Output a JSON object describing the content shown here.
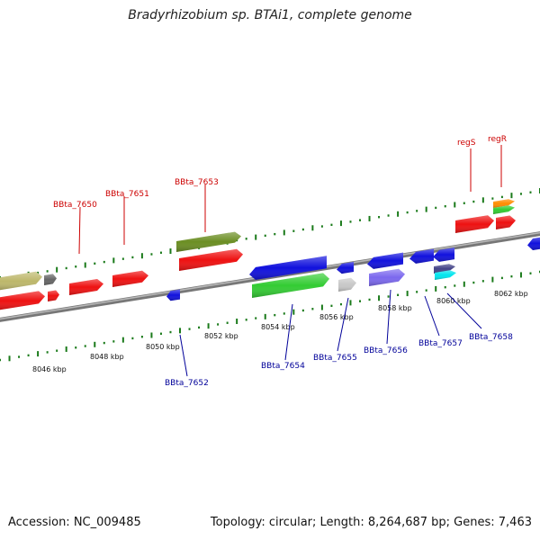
{
  "title": "Bradyrhizobium sp. BTAi1, complete genome",
  "footer": {
    "accession": "Accession: NC_009485",
    "topology": "Topology: circular; Length: 8,264,687 bp; Genes: 7,463"
  },
  "ticks": [
    "8046 kbp",
    "8048 kbp",
    "8050 kbp",
    "8052 kbp",
    "8054 kbp",
    "8056 kbp",
    "8058 kbp",
    "8060 kbp",
    "8062 kbp"
  ],
  "upper_labels": [
    "BBta_7650",
    "BBta_7651",
    "BBta_7653",
    "regS",
    "regR"
  ],
  "lower_labels": [
    "BBta_7652",
    "BBta_7654",
    "BBta_7655",
    "BBta_7656",
    "BBta_7657",
    "BBta_7658"
  ],
  "colors": {
    "upper_label": "#cc0000",
    "lower_label": "#000099",
    "tick": "#1a7a1a",
    "backbone": "#888888",
    "red": "#ee1111",
    "blue": "#1111dd",
    "green": "#33cc33",
    "olive": "#6b8e23",
    "khaki": "#bdb76b",
    "gray": "#666666",
    "silver": "#c8c8c8",
    "slate": "#7b68ee",
    "navy": "#444488",
    "cyan": "#00e5ee",
    "orange": "#ff8c00"
  }
}
